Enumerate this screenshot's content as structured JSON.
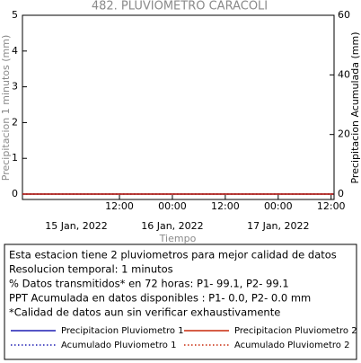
{
  "chart_data": {
    "type": "line",
    "title": "482. PLUVIOMETRO CARACOLI",
    "y_label": "Precipitacion 1 minutos (mm)",
    "y2_label": "Precipitacion Acumulada (mm)",
    "x_label": "Tiempo",
    "x": [
      "2022-01-14T14:00",
      "2022-01-17T12:30"
    ],
    "xlim": [
      "2022-01-14T14:00",
      "2022-01-17T12:40"
    ],
    "xticks": [
      {
        "value": "2022-01-15T12:00",
        "label": "12:00"
      },
      {
        "value": "2022-01-16T00:00",
        "label": "00:00"
      },
      {
        "value": "2022-01-16T12:00",
        "label": "12:00"
      },
      {
        "value": "2022-01-17T00:00",
        "label": "00:00"
      },
      {
        "value": "2022-01-17T12:00",
        "label": "12:00"
      }
    ],
    "xdates": [
      {
        "value": "2022-01-15T00:00",
        "label": "15 Jan, 2022"
      },
      {
        "value": "2022-01-16T00:00",
        "label": "16 Jan, 2022"
      },
      {
        "value": "2022-01-17T00:00",
        "label": "17 Jan, 2022"
      }
    ],
    "ylim": [
      -0.15,
      5
    ],
    "yticks": [
      0,
      1,
      2,
      3,
      4,
      5
    ],
    "y2lim": [
      -1.8,
      60
    ],
    "y2ticks": [
      0,
      20,
      40,
      60
    ],
    "series": [
      {
        "name": "Precipitacion Pluviometro 1",
        "color": "#1f1fb4",
        "style": "solid",
        "values": [
          0,
          0
        ]
      },
      {
        "name": "Precipitacion Pluviometro 2",
        "color": "#c8280a",
        "style": "solid",
        "values": [
          0,
          0
        ]
      },
      {
        "name": "Acumulado Pluviometro 1",
        "color": "#1f1fb4",
        "style": "dotted",
        "axis": "y2",
        "values": [
          0,
          0
        ]
      },
      {
        "name": "Acumulado Pluviometro 2",
        "color": "#c8280a",
        "style": "dotted",
        "axis": "y2",
        "values": [
          0,
          0
        ]
      }
    ],
    "notes": [
      "Esta estacion tiene 2 pluviometros para mejor calidad de datos",
      "Resolucion temporal: 1 minutos",
      "% Datos transmitidos* en 72 horas: P1- 99.1, P2- 99.1",
      "PPT Acumulada en datos disponibles : P1-  0.0, P2-  0.0 mm",
      "*Calidad de datos aun sin verificar exhaustivamente"
    ]
  }
}
